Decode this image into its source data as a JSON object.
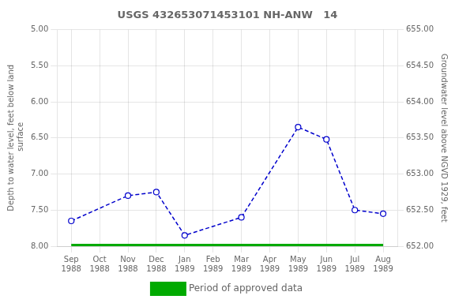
{
  "chart_data": {
    "type": "line",
    "title": "USGS 432653071453101 NH-ANW   14",
    "categories": [
      "Sep\n1988",
      "Oct\n1988",
      "Nov\n1988",
      "Dec\n1988",
      "Jan\n1989",
      "Feb\n1989",
      "Mar\n1989",
      "Apr\n1989",
      "May\n1989",
      "Jun\n1989",
      "Jul\n1989",
      "Aug\n1989"
    ],
    "series": [
      {
        "color": "#0000cc",
        "marker": "circle",
        "line_style": "dashed",
        "x": [
          "Sep\n1988",
          "Nov\n1988",
          "Dec\n1988",
          "Jan\n1989",
          "Mar\n1989",
          "May\n1989",
          "Jun\n1989",
          "Jul\n1989",
          "Aug\n1989"
        ],
        "values": [
          7.65,
          7.3,
          7.25,
          7.85,
          7.6,
          6.35,
          6.52,
          7.5,
          7.55
        ]
      },
      {
        "name": "Period of approved data",
        "color": "#00aa00",
        "marker": "none",
        "line_style": "solid",
        "values": [
          8.0,
          8.0,
          8.0,
          8.0,
          8.0,
          8.0,
          8.0,
          8.0,
          8.0,
          8.0,
          8.0,
          8.0
        ]
      }
    ],
    "ylabel": "Depth to water level, feet below land\n surface",
    "y2label": "Groundwater level above NGVD 1929, feet",
    "ylim": [
      8.0,
      5.0
    ],
    "yticks": [
      {
        "value": 5,
        "label": "5.00"
      },
      {
        "value": 5.5,
        "label": "5.50"
      },
      {
        "value": 6,
        "label": "6.00"
      },
      {
        "value": 6.5,
        "label": "6.50"
      },
      {
        "value": 7,
        "label": "7.00"
      },
      {
        "value": 7.5,
        "label": "7.50"
      },
      {
        "value": 8,
        "label": "8.00"
      }
    ],
    "y2lim": [
      652.0,
      655.0
    ],
    "y2ticks": [
      {
        "value": 652,
        "label": "652.00"
      },
      {
        "value": 652.5,
        "label": "652.50"
      },
      {
        "value": 653,
        "label": "653.00"
      },
      {
        "value": 653.5,
        "label": "653.50"
      },
      {
        "value": 654,
        "label": "654.00"
      },
      {
        "value": 654.5,
        "label": "654.50"
      },
      {
        "value": 655,
        "label": "655.00"
      }
    ],
    "grid": true,
    "legend": "bottom"
  }
}
